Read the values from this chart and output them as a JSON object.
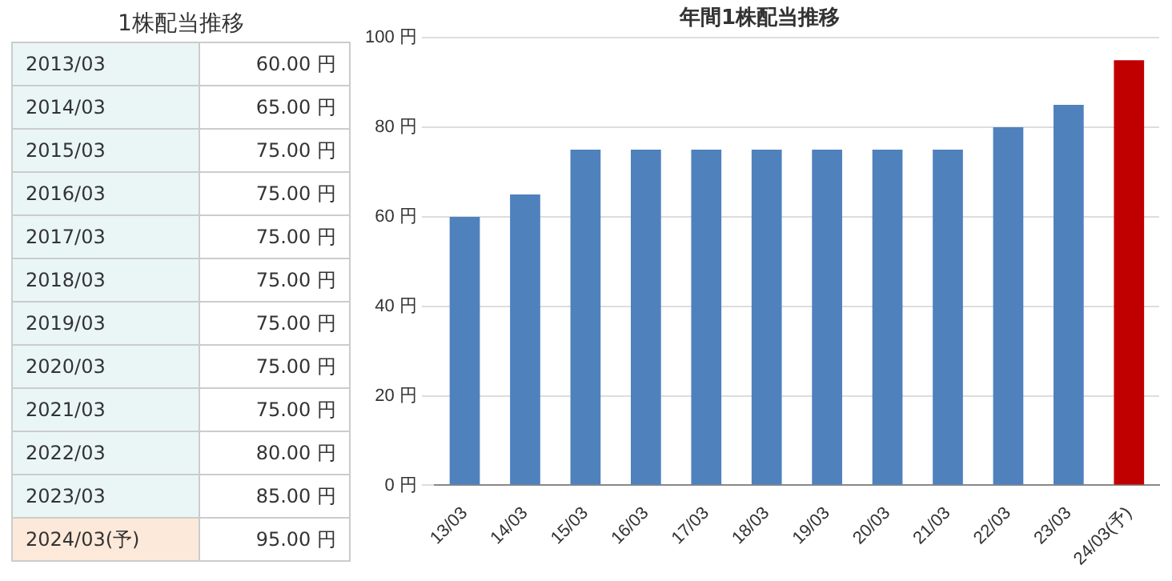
{
  "chart_data": [
    {
      "type": "other",
      "title": "1株配当推移",
      "annotations": [
        "2013/03",
        "60.00 円",
        "2014/03",
        "65.00 円",
        "2015/03",
        "75.00 円",
        "2016/03",
        "75.00 円",
        "2017/03",
        "75.00 円",
        "2018/03",
        "75.00 円",
        "2019/03",
        "75.00 円",
        "2020/03",
        "75.00 円",
        "2021/03",
        "75.00 円",
        "2022/03",
        "80.00 円",
        "2023/03",
        "85.00 円",
        "2024/03(予)",
        "95.00 円"
      ]
    },
    {
      "type": "bar",
      "title": "年間1株配当推移",
      "categories": [
        "13/03",
        "14/03",
        "15/03",
        "16/03",
        "17/03",
        "18/03",
        "19/03",
        "20/03",
        "21/03",
        "22/03",
        "23/03",
        "24/03(予)"
      ],
      "values": [
        60,
        65,
        75,
        75,
        75,
        75,
        75,
        75,
        75,
        80,
        85,
        95
      ],
      "colors": [
        "#4f81bd",
        "#4f81bd",
        "#4f81bd",
        "#4f81bd",
        "#4f81bd",
        "#4f81bd",
        "#4f81bd",
        "#4f81bd",
        "#4f81bd",
        "#4f81bd",
        "#4f81bd",
        "#c00000"
      ],
      "ylim": [
        0,
        100
      ],
      "yticks": [
        {
          "value": 0,
          "label": "0 円"
        },
        {
          "value": 20,
          "label": "20 円"
        },
        {
          "value": 40,
          "label": "40 円"
        },
        {
          "value": 60,
          "label": "60 円"
        },
        {
          "value": 80,
          "label": "80 円"
        },
        {
          "value": 100,
          "label": "100 円"
        }
      ],
      "grid": "y",
      "legend": false
    }
  ]
}
